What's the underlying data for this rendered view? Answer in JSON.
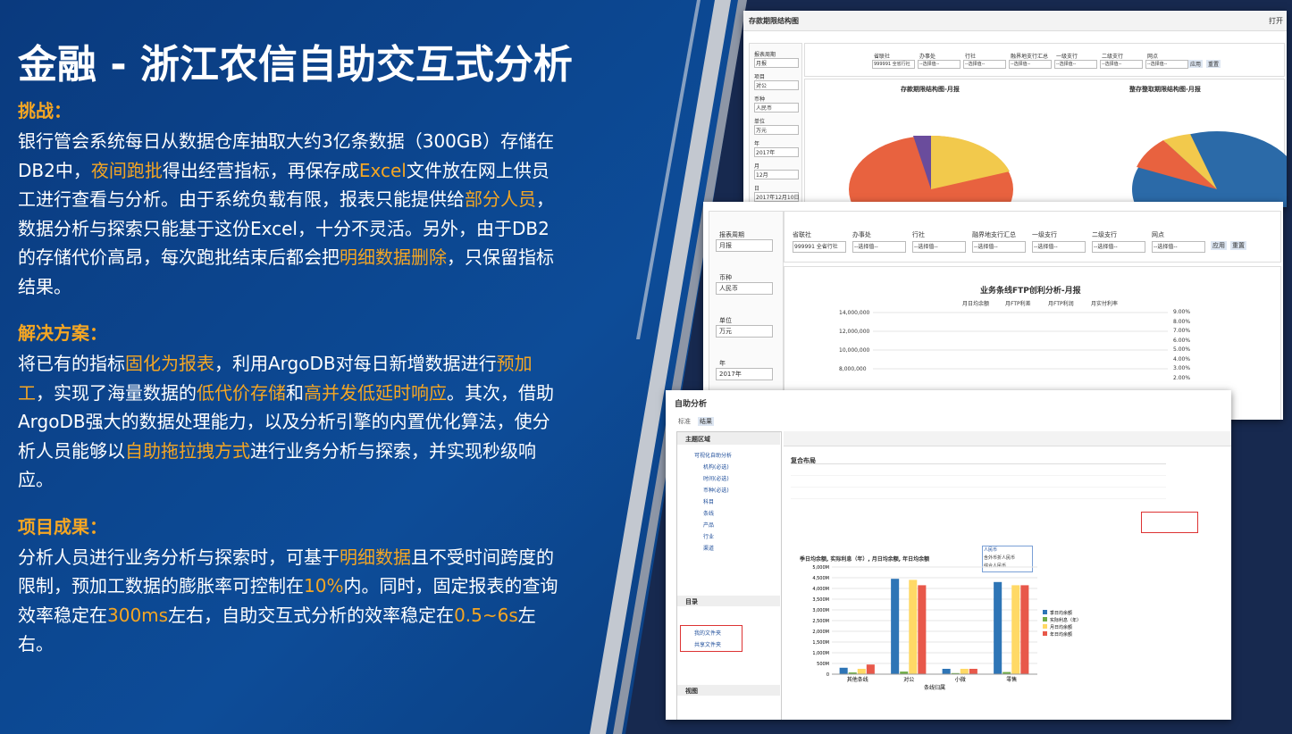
{
  "title": "金融 - 浙江农信自助交互式分析",
  "highlight_color": "#f5a623",
  "sections": [
    {
      "heading": "挑战：",
      "paragraph": [
        {
          "text": "银行管会系统每日从数据仓库抽取大约3亿条数据（300GB）存储在DB2中，",
          "highlight": false
        },
        {
          "text": "夜间跑批",
          "highlight": true
        },
        {
          "text": "得出经营指标，再保存成",
          "highlight": false
        },
        {
          "text": "Excel",
          "highlight": true
        },
        {
          "text": "文件放在网上供员工进行查看与分析。由于系统负载有限，报表只能提供给",
          "highlight": false
        },
        {
          "text": "部分人员",
          "highlight": true
        },
        {
          "text": "，数据分析与探索只能基于这份Excel，十分不灵活。另外，由于DB2的存储代价高昂，每次跑批结束后都会把",
          "highlight": false
        },
        {
          "text": "明细数据删除",
          "highlight": true
        },
        {
          "text": "，只保留指标结果。",
          "highlight": false
        }
      ]
    },
    {
      "heading": "解决方案：",
      "paragraph": [
        {
          "text": "将已有的指标",
          "highlight": false
        },
        {
          "text": "固化为报表",
          "highlight": true
        },
        {
          "text": "，利用ArgoDB对每日新增数据进行",
          "highlight": false
        },
        {
          "text": "预加工",
          "highlight": true
        },
        {
          "text": "，实现了海量数据的",
          "highlight": false
        },
        {
          "text": "低代价存储",
          "highlight": true
        },
        {
          "text": "和",
          "highlight": false
        },
        {
          "text": "高并发低延时响应",
          "highlight": true
        },
        {
          "text": "。其次，借助ArgoDB强大的数据处理能力，以及分析引擎的内置优化算法，使分析人员能够以",
          "highlight": false
        },
        {
          "text": "自助拖拉拽方式",
          "highlight": true
        },
        {
          "text": "进行业务分析与探索，并实现秒级响应。",
          "highlight": false
        }
      ]
    },
    {
      "heading": "项目成果：",
      "paragraph": [
        {
          "text": "分析人员进行业务分析与探索时，可基于",
          "highlight": false
        },
        {
          "text": "明细数据",
          "highlight": true
        },
        {
          "text": "且不受时间跨度的限制，预加工数据的膨胀率可控制在",
          "highlight": false
        },
        {
          "text": "10%",
          "highlight": true
        },
        {
          "text": "内。同时，固定报表的查询效率稳定在",
          "highlight": false
        },
        {
          "text": "300ms",
          "highlight": true
        },
        {
          "text": "左右，自助交互式分析的效率稳定在",
          "highlight": false
        },
        {
          "text": "0.5~6s",
          "highlight": true
        },
        {
          "text": "左右。",
          "highlight": false
        }
      ]
    }
  ],
  "screenshot_1": {
    "title": "存款期限结构图",
    "menu": "打开",
    "side_filters": [
      {
        "label": "报表周期",
        "value": "月报"
      },
      {
        "label": "项目",
        "value": "对公"
      },
      {
        "label": "币种",
        "value": "人民币"
      },
      {
        "label": "单位",
        "value": "万元"
      },
      {
        "label": "年",
        "value": "2017年"
      },
      {
        "label": "月",
        "value": "12月"
      },
      {
        "label": "日",
        "value": "2017年12月10日"
      }
    ],
    "top_filters": [
      {
        "label": "省联社",
        "value": "999991 全省行社"
      },
      {
        "label": "办事处",
        "value": "--选择值--"
      },
      {
        "label": "行社",
        "value": "--选择值--"
      },
      {
        "label": "融界地支行汇总",
        "value": "--选择值--"
      },
      {
        "label": "一级支行",
        "value": "--选择值--"
      },
      {
        "label": "二级支行",
        "value": "--选择值--"
      },
      {
        "label": "网点",
        "value": "--选择值--"
      }
    ],
    "buttons": [
      "应用",
      "重置"
    ],
    "chart_titles": [
      "存款期限结构图-月报",
      "整存整取期限结构图-月报"
    ]
  },
  "screenshot_2": {
    "chart_title": "业务条线FTP创利分析-月报",
    "legend": [
      "月日均余额",
      "月FTP利差",
      "月FTP利润",
      "月实付利率"
    ],
    "yticks": [
      "14,000,000",
      "12,000,000",
      "10,000,000",
      "8,000,000"
    ],
    "y2ticks": [
      "9.00%",
      "8.00%",
      "7.00%",
      "6.00%",
      "5.00%",
      "4.00%",
      "3.00%",
      "2.00%"
    ]
  },
  "screenshot_3": {
    "title": "自助分析",
    "tabs": [
      "标准",
      "结果"
    ],
    "tree_header": "主题区域",
    "tree": [
      "可视化自助分析",
      "机构(必选)",
      "时间(必选)",
      "币种(必选)",
      "科目",
      "条线",
      "产品",
      "行业",
      "渠道"
    ],
    "catalog": "目录",
    "folders": [
      "我的文件夹",
      "共享文件夹"
    ],
    "view": "视图",
    "layout": "复合布局",
    "dropdown": [
      "人民币",
      "含外币折人民币",
      "综合人民币"
    ],
    "chart_title": "季日均余额, 实际利息（年）, 月日均余额, 年日均余额",
    "x_label": "条线归属",
    "categories": [
      "其他条线",
      "对公",
      "小微",
      "零售"
    ],
    "ylim": [
      0,
      5000
    ],
    "yticks": [
      {
        "value": 0,
        "label": "0"
      },
      {
        "value": 500,
        "label": "500M"
      },
      {
        "value": 1000,
        "label": "1,000M"
      },
      {
        "value": 1500,
        "label": "1,500M"
      },
      {
        "value": 2000,
        "label": "2,000M"
      },
      {
        "value": 2500,
        "label": "2,500M"
      },
      {
        "value": 3000,
        "label": "3,000M"
      },
      {
        "value": 3500,
        "label": "3,500M"
      },
      {
        "value": 4000,
        "label": "4,000M"
      },
      {
        "value": 4500,
        "label": "4,500M"
      },
      {
        "value": 5000,
        "label": "5,000M"
      }
    ],
    "series": [
      {
        "name": "季日均余额",
        "color": "#2e75b6",
        "values": [
          300,
          4450,
          250,
          4300
        ]
      },
      {
        "name": "实际利息（年）",
        "color": "#70ad47",
        "values": [
          80,
          120,
          50,
          100
        ]
      },
      {
        "name": "月日均余额",
        "color": "#ffd966",
        "values": [
          250,
          4400,
          250,
          4150
        ]
      },
      {
        "name": "年日均余额",
        "color": "#e8584a",
        "values": [
          450,
          4150,
          250,
          4150
        ]
      }
    ]
  }
}
